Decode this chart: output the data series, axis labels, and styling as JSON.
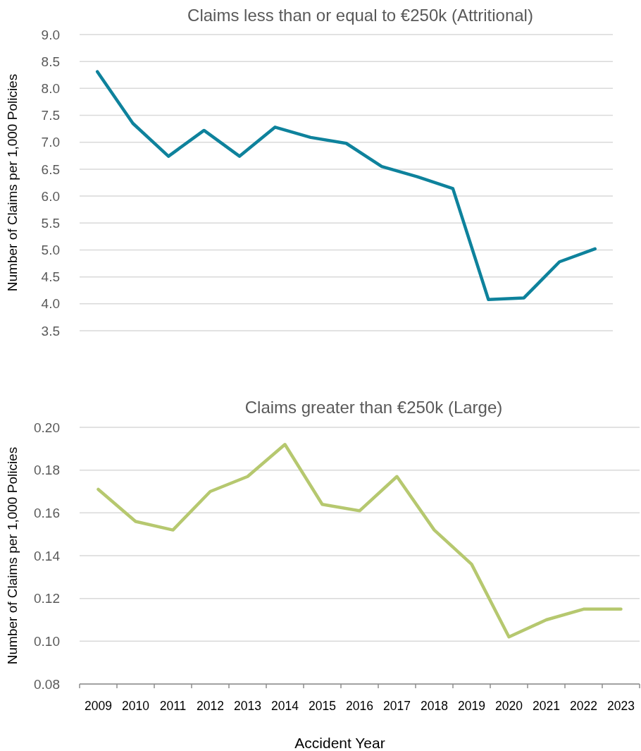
{
  "chart_data": [
    {
      "type": "line",
      "title": "Claims less than or equal to €250k (Attritional)",
      "ylabel": "Number of Claims per 1,000 Policies",
      "categories": [
        null,
        null,
        null,
        null,
        null,
        null,
        null,
        null,
        null,
        null,
        null,
        null,
        null,
        null,
        null
      ],
      "series": [
        {
          "color": "#0e829c",
          "values": [
            8.31,
            7.35,
            6.74,
            7.22,
            6.74,
            7.28,
            7.09,
            6.98,
            6.55,
            6.36,
            6.14,
            4.08,
            4.11,
            4.78,
            5.02
          ]
        }
      ],
      "ylim": [
        3.5,
        9.0
      ],
      "yticks": [
        {
          "value": 3.5,
          "label": "3.5"
        },
        {
          "value": 4,
          "label": "4.0"
        },
        {
          "value": 4.5,
          "label": "4.5"
        },
        {
          "value": 5,
          "label": "5.0"
        },
        {
          "value": 5.5,
          "label": "5.5"
        },
        {
          "value": 6,
          "label": "6.0"
        },
        {
          "value": 6.5,
          "label": "6.5"
        },
        {
          "value": 7,
          "label": "7.0"
        },
        {
          "value": 7.5,
          "label": "7.5"
        },
        {
          "value": 8,
          "label": "8.0"
        },
        {
          "value": 8.5,
          "label": "8.5"
        },
        {
          "value": 9,
          "label": "9.0"
        }
      ],
      "grid": "y",
      "tick_labels": "y",
      "marker": "none",
      "line_style": "solid"
    },
    {
      "type": "line",
      "title": "Claims greater than €250k (Large)",
      "ylabel": "Number of Claims per 1,000 Policies",
      "xlabel": "Accident Year",
      "categories": [
        "2009",
        "2010",
        "2011",
        "2012",
        "2013",
        "2014",
        "2015",
        "2016",
        "2017",
        "2018",
        "2019",
        "2020",
        "2021",
        "2022",
        "2023"
      ],
      "series": [
        {
          "color": "#b6c86f",
          "values": [
            0.171,
            0.156,
            0.152,
            0.17,
            0.177,
            0.192,
            0.164,
            0.161,
            0.177,
            0.152,
            0.136,
            0.102,
            0.11,
            0.115,
            0.115
          ]
        }
      ],
      "ylim": [
        0.08,
        0.2
      ],
      "yticks": [
        {
          "value": 0.08,
          "label": "0.08"
        },
        {
          "value": 0.1,
          "label": "0.10"
        },
        {
          "value": 0.12,
          "label": "0.12"
        },
        {
          "value": 0.14,
          "label": "0.14"
        },
        {
          "value": 0.16,
          "label": "0.16"
        },
        {
          "value": 0.18,
          "label": "0.18"
        },
        {
          "value": 0.2,
          "label": "0.20"
        }
      ],
      "grid": "y",
      "marker": "none",
      "line_style": "solid"
    }
  ]
}
